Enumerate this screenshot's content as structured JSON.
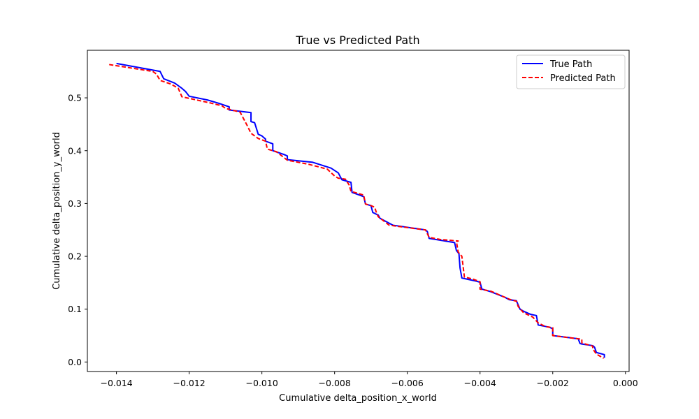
{
  "chart_data": {
    "type": "line",
    "title": "True vs Predicted Path",
    "xlabel": "Cumulative delta_position_x_world",
    "ylabel": "Cumulative delta_position_y_world",
    "xlim": [
      -0.0148,
      0.0001
    ],
    "ylim": [
      -0.018,
      0.59
    ],
    "xticks": [
      -0.014,
      -0.012,
      -0.01,
      -0.008,
      -0.006,
      -0.004,
      -0.002,
      0.0
    ],
    "xtick_labels": [
      "−0.014",
      "−0.012",
      "−0.010",
      "−0.008",
      "−0.006",
      "−0.004",
      "−0.002",
      "0.000"
    ],
    "yticks": [
      0.0,
      0.1,
      0.2,
      0.3,
      0.4,
      0.5
    ],
    "ytick_labels": [
      "0.0",
      "0.1",
      "0.2",
      "0.3",
      "0.4",
      "0.5"
    ],
    "grid": false,
    "legend_position": "top-right",
    "series": [
      {
        "name": "True Path",
        "color": "#0000ff",
        "style": "solid",
        "x": [
          -0.014,
          -0.0128,
          -0.0127,
          -0.0124,
          -0.0122,
          -0.0121,
          -0.012,
          -0.0115,
          -0.0112,
          -0.0109,
          -0.0109,
          -0.0103,
          -0.0103,
          -0.0102,
          -0.0101,
          -0.01,
          -0.0099,
          -0.0099,
          -0.0097,
          -0.0097,
          -0.0094,
          -0.0093,
          -0.0093,
          -0.0086,
          -0.0081,
          -0.0079,
          -0.0078,
          -0.00765,
          -0.00755,
          -0.00752,
          -0.0072,
          -0.00715,
          -0.007,
          -0.00695,
          -0.0068,
          -0.00675,
          -0.0064,
          -0.0055,
          -0.00545,
          -0.0054,
          -0.0047,
          -0.00465,
          -0.00458,
          -0.00455,
          -0.0045,
          -0.0041,
          -0.004,
          -0.00395,
          -0.0037,
          -0.0033,
          -0.0032,
          -0.003,
          -0.0029,
          -0.0028,
          -0.0026,
          -0.00245,
          -0.0024,
          -0.0021,
          -0.002,
          -0.002,
          -0.0013,
          -0.00125,
          -0.0012,
          -0.0009,
          -0.00085,
          -0.0008,
          -0.00058,
          -0.00058
        ],
        "y": [
          0.565,
          0.55,
          0.536,
          0.528,
          0.518,
          0.512,
          0.503,
          0.496,
          0.49,
          0.483,
          0.477,
          0.472,
          0.455,
          0.453,
          0.431,
          0.428,
          0.422,
          0.418,
          0.413,
          0.4,
          0.393,
          0.39,
          0.383,
          0.378,
          0.367,
          0.358,
          0.345,
          0.342,
          0.34,
          0.321,
          0.313,
          0.299,
          0.296,
          0.283,
          0.278,
          0.272,
          0.259,
          0.25,
          0.247,
          0.234,
          0.226,
          0.211,
          0.205,
          0.178,
          0.159,
          0.153,
          0.151,
          0.138,
          0.133,
          0.122,
          0.118,
          0.116,
          0.1,
          0.096,
          0.09,
          0.088,
          0.07,
          0.066,
          0.063,
          0.05,
          0.044,
          0.035,
          0.034,
          0.031,
          0.028,
          0.018,
          0.014,
          0.008
        ]
      },
      {
        "name": "Predicted Path",
        "color": "#ff0000",
        "style": "dashed",
        "x": [
          -0.0142,
          -0.013,
          -0.0129,
          -0.0128,
          -0.0125,
          -0.0123,
          -0.0122,
          -0.0118,
          -0.0114,
          -0.0111,
          -0.011,
          -0.0106,
          -0.0105,
          -0.0104,
          -0.0103,
          -0.0101,
          -0.0099,
          -0.00985,
          -0.0096,
          -0.0093,
          -0.0087,
          -0.0082,
          -0.008,
          -0.0079,
          -0.0077,
          -0.0076,
          -0.00755,
          -0.0072,
          -0.00715,
          -0.007,
          -0.0069,
          -0.00685,
          -0.0068,
          -0.0065,
          -0.0055,
          -0.0054,
          -0.0051,
          -0.0046,
          -0.00465,
          -0.0046,
          -0.0045,
          -0.00443,
          -0.0042,
          -0.004,
          -0.004,
          -0.0037,
          -0.0033,
          -0.0032,
          -0.003,
          -0.00295,
          -0.0028,
          -0.0027,
          -0.00255,
          -0.0024,
          -0.0022,
          -0.002,
          -0.002,
          -0.0012,
          -0.0012,
          -0.0009,
          -0.0009,
          -0.0008,
          -0.0006
        ],
        "y": [
          0.563,
          0.55,
          0.545,
          0.533,
          0.526,
          0.518,
          0.502,
          0.496,
          0.49,
          0.485,
          0.48,
          0.473,
          0.46,
          0.447,
          0.433,
          0.423,
          0.418,
          0.403,
          0.398,
          0.382,
          0.374,
          0.365,
          0.352,
          0.348,
          0.346,
          0.335,
          0.323,
          0.316,
          0.299,
          0.296,
          0.293,
          0.283,
          0.275,
          0.259,
          0.25,
          0.236,
          0.232,
          0.229,
          0.228,
          0.208,
          0.2,
          0.161,
          0.157,
          0.152,
          0.138,
          0.134,
          0.122,
          0.119,
          0.115,
          0.105,
          0.093,
          0.09,
          0.085,
          0.074,
          0.067,
          0.065,
          0.05,
          0.043,
          0.036,
          0.03,
          0.025,
          0.015,
          0.007
        ]
      }
    ]
  }
}
